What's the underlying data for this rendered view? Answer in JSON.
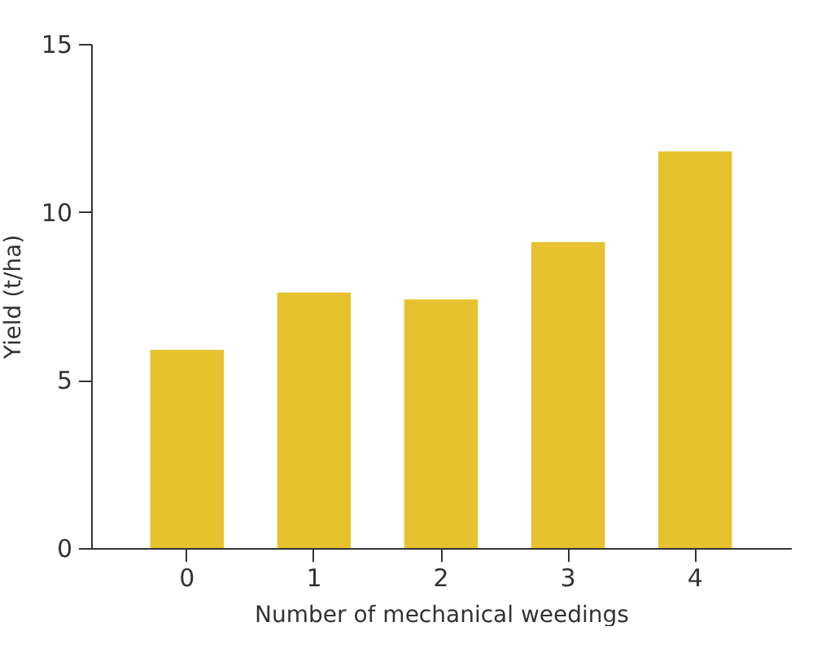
{
  "chart_data": {
    "type": "bar",
    "xlabel": "Number of mechanical weedings",
    "ylabel": "Yield (t/ha)",
    "categories": [
      "0",
      "1",
      "2",
      "3",
      "4"
    ],
    "values": [
      5.9,
      7.6,
      7.4,
      9.1,
      11.8
    ],
    "color": "#e6c22e",
    "ylim": [
      0,
      15
    ],
    "yticks": [
      0,
      5,
      10,
      15
    ],
    "grid": false
  }
}
